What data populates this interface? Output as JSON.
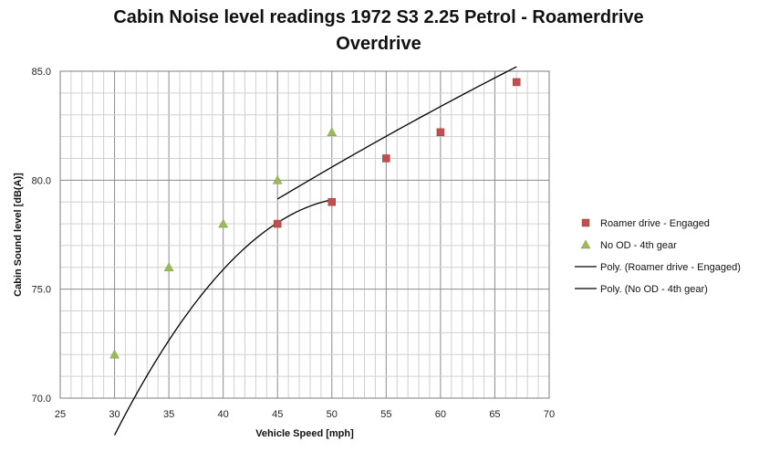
{
  "chart_data": {
    "type": "scatter",
    "title_lines": [
      "Cabin Noise level readings 1972 S3 2.25 Petrol - Roamerdrive",
      "Overdrive"
    ],
    "xlabel": "Vehicle Speed [mph]",
    "ylabel": "Cabin Sound level [dB(A)]",
    "xlim": [
      25,
      70
    ],
    "ylim": [
      70,
      85
    ],
    "x_ticks": [
      25,
      30,
      35,
      40,
      45,
      50,
      55,
      60,
      65,
      70
    ],
    "y_ticks": [
      70.0,
      75.0,
      80.0,
      85.0
    ],
    "x_tick_labels": [
      "25",
      "30",
      "35",
      "40",
      "45",
      "50",
      "55",
      "60",
      "65",
      "70"
    ],
    "y_tick_labels": [
      "70.0",
      "75.0",
      "80.0",
      "85.0"
    ],
    "x_minor_step": 1,
    "y_minor_step": 1,
    "grid": true,
    "legend_position": "right",
    "series": [
      {
        "name": "Roamer drive - Engaged",
        "marker": "square",
        "color": "#c0504d",
        "x": [
          45,
          50,
          55,
          60,
          67
        ],
        "y": [
          78.0,
          79.0,
          81.0,
          82.2,
          84.5
        ]
      },
      {
        "name": "No OD - 4th gear",
        "marker": "triangle",
        "color": "#9bbb59",
        "x": [
          30,
          35,
          40,
          45,
          50
        ],
        "y": [
          72.0,
          76.0,
          78.0,
          80.0,
          82.2
        ]
      }
    ],
    "trendlines": [
      {
        "name": "Poly. (Roamer drive - Engaged)",
        "color": "#000000",
        "x_range": [
          45,
          67
        ],
        "coefficients": [
          -0.001,
          0.388,
          63.7
        ]
      },
      {
        "name": "Poly. (No OD - 4th gear)",
        "color": "#000000",
        "x_range": [
          30,
          50
        ],
        "coefficients": [
          -0.022,
          2.3,
          19.1
        ]
      }
    ]
  }
}
